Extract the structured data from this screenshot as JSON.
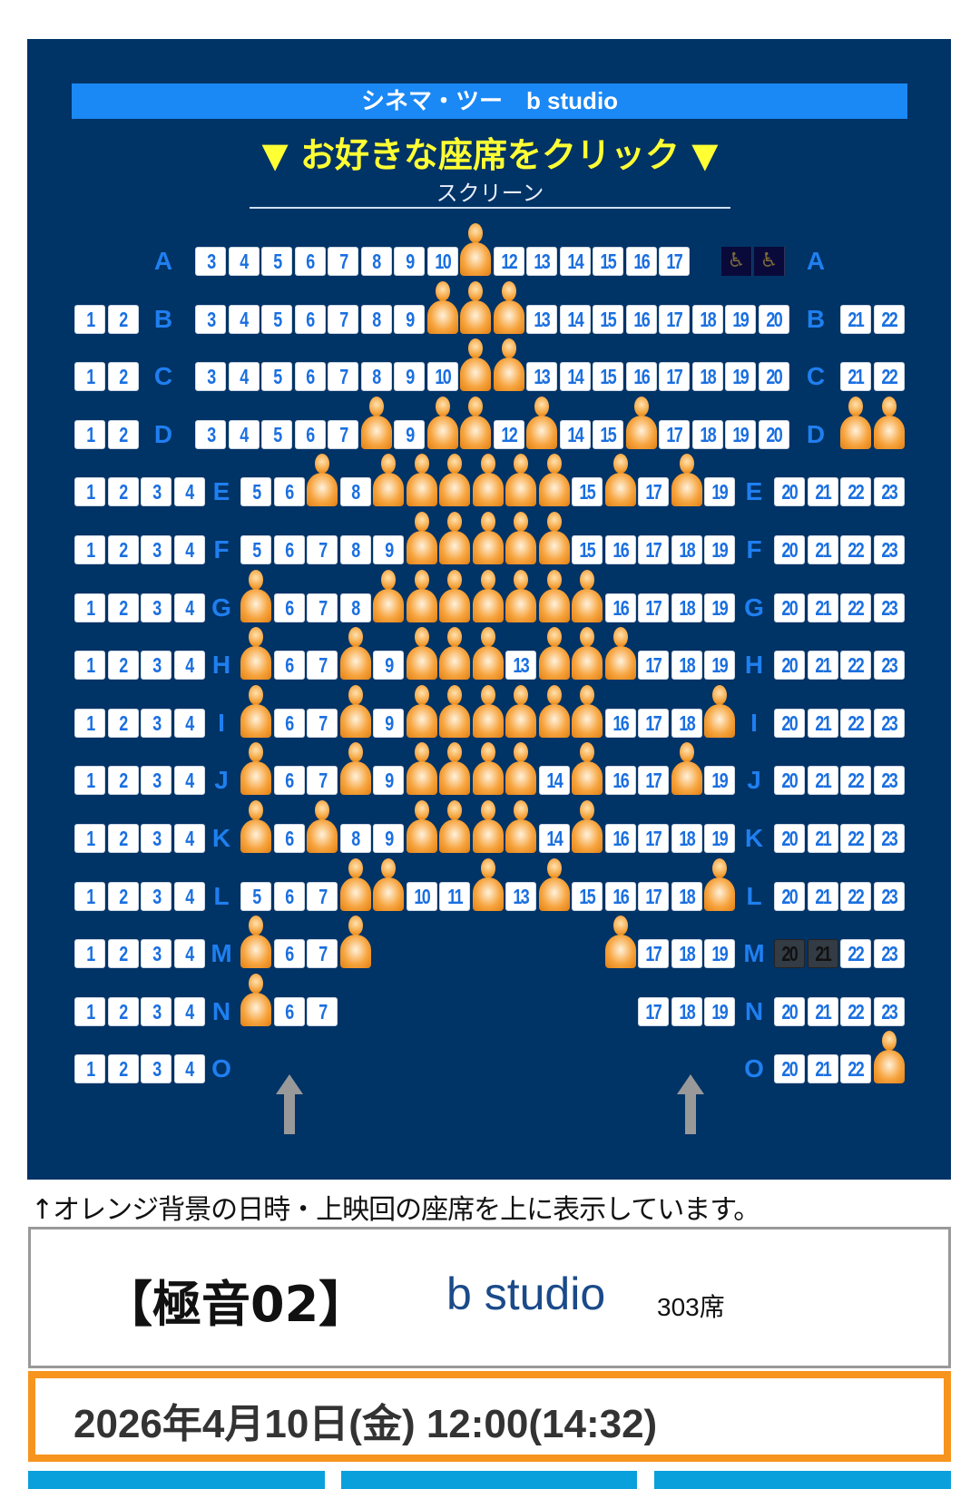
{
  "header": {
    "title": "シネマ・ツー　b studio",
    "instruction": "▼ お好きな座席をクリック ▼",
    "screen_label": "スクリーン"
  },
  "colors": {
    "panel": "#003366",
    "title_bar": "#1a88f5",
    "instruction": "#ffff33",
    "seat_number": "#1a6fe0",
    "occupied": "#f7a540",
    "date_border": "#f7941d",
    "theater_name": "#1a4a8a"
  },
  "legend": {
    "occupied_icon": "person-icon",
    "wheelchair_icon": "wheelchair-icon",
    "exit_icon": "arrow-up-icon"
  },
  "rows": [
    {
      "row": "A",
      "layout": "front",
      "seats": [
        3,
        4,
        5,
        6,
        7,
        8,
        9,
        10,
        11,
        12,
        13,
        14,
        15,
        16,
        17
      ],
      "occupied": [
        11
      ],
      "wheelchair": 2
    },
    {
      "row": "B",
      "layout": "front",
      "seats": [
        1,
        2,
        3,
        4,
        5,
        6,
        7,
        8,
        9,
        10,
        11,
        12,
        13,
        14,
        15,
        16,
        17,
        18,
        19,
        20,
        21,
        22
      ],
      "occupied": [
        10,
        11,
        12
      ]
    },
    {
      "row": "C",
      "layout": "front",
      "seats": [
        1,
        2,
        3,
        4,
        5,
        6,
        7,
        8,
        9,
        10,
        11,
        12,
        13,
        14,
        15,
        16,
        17,
        18,
        19,
        20,
        21,
        22
      ],
      "occupied": [
        11,
        12
      ]
    },
    {
      "row": "D",
      "layout": "front",
      "seats": [
        1,
        2,
        3,
        4,
        5,
        6,
        7,
        8,
        9,
        10,
        11,
        12,
        13,
        14,
        15,
        16,
        17,
        18,
        19,
        20,
        21,
        22
      ],
      "occupied": [
        8,
        10,
        11,
        13,
        16,
        21,
        22
      ]
    },
    {
      "row": "E",
      "layout": "rear",
      "seats": [
        1,
        2,
        3,
        4,
        5,
        6,
        7,
        8,
        9,
        10,
        11,
        12,
        13,
        14,
        15,
        16,
        17,
        18,
        19,
        20,
        21,
        22,
        23
      ],
      "occupied": [
        7,
        9,
        10,
        11,
        12,
        13,
        14,
        16,
        18
      ]
    },
    {
      "row": "F",
      "layout": "rear",
      "seats": [
        1,
        2,
        3,
        4,
        5,
        6,
        7,
        8,
        9,
        10,
        11,
        12,
        13,
        14,
        15,
        16,
        17,
        18,
        19,
        20,
        21,
        22,
        23
      ],
      "occupied": [
        10,
        11,
        12,
        13,
        14
      ]
    },
    {
      "row": "G",
      "layout": "rear",
      "seats": [
        1,
        2,
        3,
        4,
        5,
        6,
        7,
        8,
        9,
        10,
        11,
        12,
        13,
        14,
        15,
        16,
        17,
        18,
        19,
        20,
        21,
        22,
        23
      ],
      "occupied": [
        5,
        9,
        10,
        11,
        12,
        13,
        14,
        15
      ]
    },
    {
      "row": "H",
      "layout": "rear",
      "seats": [
        1,
        2,
        3,
        4,
        5,
        6,
        7,
        8,
        9,
        10,
        11,
        12,
        13,
        14,
        15,
        16,
        17,
        18,
        19,
        20,
        21,
        22,
        23
      ],
      "occupied": [
        5,
        8,
        10,
        11,
        12,
        14,
        15,
        16
      ]
    },
    {
      "row": "I",
      "layout": "rear",
      "seats": [
        1,
        2,
        3,
        4,
        5,
        6,
        7,
        8,
        9,
        10,
        11,
        12,
        13,
        14,
        15,
        16,
        17,
        18,
        19,
        20,
        21,
        22,
        23
      ],
      "occupied": [
        5,
        8,
        10,
        11,
        12,
        13,
        14,
        15,
        19
      ]
    },
    {
      "row": "J",
      "layout": "rear",
      "seats": [
        1,
        2,
        3,
        4,
        5,
        6,
        7,
        8,
        9,
        10,
        11,
        12,
        13,
        14,
        15,
        16,
        17,
        18,
        19,
        20,
        21,
        22,
        23
      ],
      "occupied": [
        5,
        8,
        10,
        11,
        12,
        13,
        15,
        18
      ]
    },
    {
      "row": "K",
      "layout": "rear",
      "seats": [
        1,
        2,
        3,
        4,
        5,
        6,
        7,
        8,
        9,
        10,
        11,
        12,
        13,
        14,
        15,
        16,
        17,
        18,
        19,
        20,
        21,
        22,
        23
      ],
      "occupied": [
        5,
        7,
        10,
        11,
        12,
        13,
        15
      ]
    },
    {
      "row": "L",
      "layout": "rear",
      "seats": [
        1,
        2,
        3,
        4,
        5,
        6,
        7,
        8,
        9,
        10,
        11,
        12,
        13,
        14,
        15,
        16,
        17,
        18,
        19,
        20,
        21,
        22,
        23
      ],
      "occupied": [
        8,
        9,
        12,
        14,
        19
      ]
    },
    {
      "row": "M",
      "layout": "rear",
      "seats": [
        1,
        2,
        3,
        4,
        5,
        6,
        7,
        8,
        16,
        17,
        18,
        19,
        20,
        21,
        22,
        23
      ],
      "occupied": [
        5,
        8,
        16
      ],
      "unavailable": [
        20,
        21
      ]
    },
    {
      "row": "N",
      "layout": "rear",
      "seats": [
        1,
        2,
        3,
        4,
        5,
        6,
        7,
        17,
        18,
        19,
        20,
        21,
        22,
        23
      ],
      "occupied": [
        5
      ]
    },
    {
      "row": "O",
      "layout": "rear",
      "seats": [
        1,
        2,
        3,
        4,
        20,
        21,
        22,
        23
      ],
      "occupied": [
        23
      ]
    }
  ],
  "note": "↑オレンジ背景の日時・上映回の座席を上に表示しています。",
  "info": {
    "movie": "【極音02】",
    "theater": "b studio",
    "capacity": "303席"
  },
  "showtime": {
    "date": "2026年4月10日(金) 12:00(14:32)"
  }
}
